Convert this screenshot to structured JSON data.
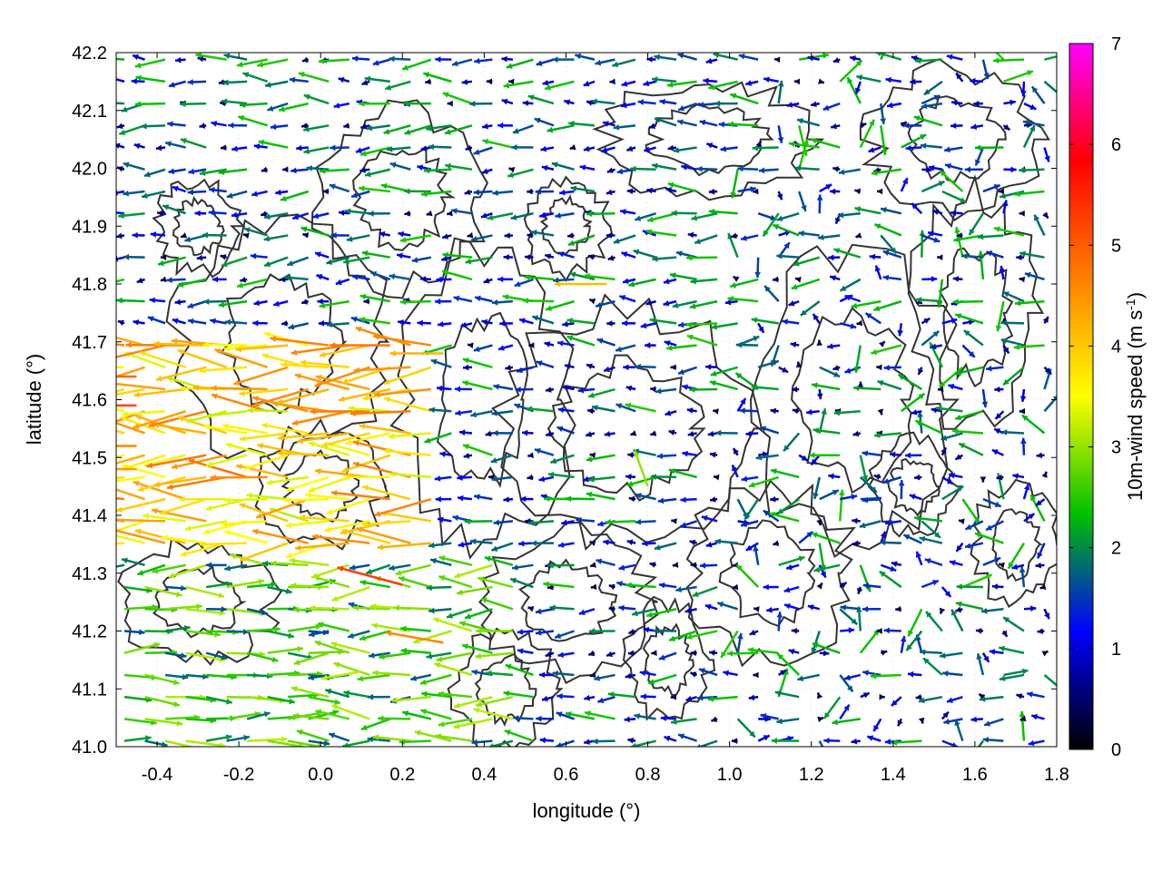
{
  "chart_data": {
    "type": "quiver",
    "title": "",
    "xlabel": "longitude (°)",
    "ylabel": "latitude (°)",
    "xlim": [
      -0.5,
      1.8
    ],
    "ylim": [
      41.0,
      42.2
    ],
    "xticks": [
      "-0.4",
      "-0.2",
      "0.0",
      "0.2",
      "0.4",
      "0.6",
      "0.8",
      "1.0",
      "1.2",
      "1.4",
      "1.6",
      "1.8"
    ],
    "xtick_values": [
      -0.4,
      -0.2,
      0.0,
      0.2,
      0.4,
      0.6,
      0.8,
      1.0,
      1.2,
      1.4,
      1.6,
      1.8
    ],
    "yticks": [
      "41.0",
      "41.1",
      "41.2",
      "41.3",
      "41.4",
      "41.5",
      "41.6",
      "41.7",
      "41.8",
      "41.9",
      "42.0",
      "42.1",
      "42.2"
    ],
    "ytick_values": [
      41.0,
      41.1,
      41.2,
      41.3,
      41.4,
      41.5,
      41.6,
      41.7,
      41.8,
      41.9,
      42.0,
      42.1,
      42.2
    ],
    "grid": true,
    "colorbar": {
      "label_main": "10m-wind speed (m s",
      "label_sup": "-1",
      "label_end": ")",
      "range": [
        0,
        7
      ],
      "ticks": [
        "0",
        "1",
        "2",
        "3",
        "4",
        "5",
        "6",
        "7"
      ],
      "tick_values": [
        0,
        1,
        2,
        3,
        4,
        5,
        6,
        7
      ],
      "palette": [
        "#000000",
        "#0000ff",
        "#00c000",
        "#ffff00",
        "#ff8000",
        "#ff0000",
        "#ff00ff"
      ]
    },
    "series": [
      {
        "kind": "wind-vectors",
        "grid_x_step": 0.05,
        "grid_y_step": 0.038,
        "points": [
          {
            "x": -0.45,
            "y": 41.59,
            "speed": 5.2,
            "dir_deg": 180
          },
          {
            "x": -0.45,
            "y": 41.52,
            "speed": 4.6,
            "dir_deg": 180
          },
          {
            "x": -0.45,
            "y": 41.48,
            "speed": 4.4,
            "dir_deg": 180
          },
          {
            "x": -0.45,
            "y": 41.64,
            "speed": 4.9,
            "dir_deg": 180
          },
          {
            "x": 0.2,
            "y": 41.28,
            "speed": 5.3,
            "dir_deg": 165
          },
          {
            "x": 0.3,
            "y": 41.18,
            "speed": 4.6,
            "dir_deg": 170
          },
          {
            "x": 0.7,
            "y": 41.8,
            "speed": 4.1,
            "dir_deg": 180
          },
          {
            "x": 0.3,
            "y": 41.68,
            "speed": 4.2,
            "dir_deg": 180
          },
          {
            "x": 0.1,
            "y": 41.13,
            "speed": 3.2,
            "dir_deg": 190
          },
          {
            "x": 0.8,
            "y": 41.45,
            "speed": 3.0,
            "dir_deg": 110
          }
        ]
      }
    ],
    "contours": {
      "color": "#333333",
      "description": "terrain elevation isolines"
    }
  }
}
